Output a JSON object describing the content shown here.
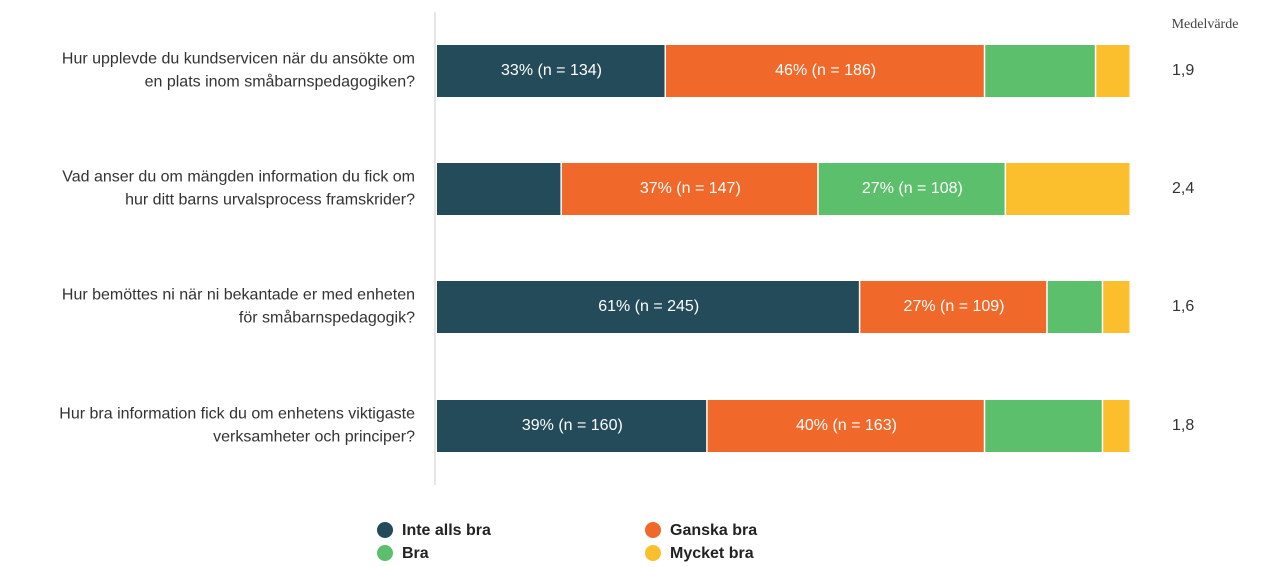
{
  "chart_data": {
    "type": "stacked_barh",
    "mean_title": "Medelvärde",
    "categories": [
      "Hur upplevde du kundservicen när du ansökte om en plats inom småbarnspedagogiken?",
      "Vad anser du om mängden information du fick om hur ditt barns urvalsprocess framskrider?",
      "Hur bemöttes ni när ni bekantade er med enheten för småbarnspedagogik?",
      "Hur bra information fick du om enhetens viktigaste verksamheter och principer?"
    ],
    "means": [
      "1,9",
      "2,4",
      "1,6",
      "1,8"
    ],
    "xlim": [
      0,
      100
    ],
    "series": [
      {
        "name": "Inte alls bra",
        "color": "#234b5a",
        "values": [
          33,
          18,
          61,
          39
        ],
        "value_labels": [
          "33% (n = 134)",
          null,
          "61% (n = 245)",
          "39% (n = 160)"
        ]
      },
      {
        "name": "Ganska bra",
        "color": "#f0682a",
        "values": [
          46,
          37,
          27,
          40
        ],
        "value_labels": [
          "46% (n = 186)",
          "37% (n = 147)",
          "27% (n = 109)",
          "40% (n = 163)"
        ]
      },
      {
        "name": "Bra",
        "color": "#5cbf6b",
        "values": [
          16,
          27,
          8,
          17
        ],
        "value_labels": [
          null,
          "27% (n = 108)",
          null,
          null
        ]
      },
      {
        "name": "Mycket bra",
        "color": "#fbbf2e",
        "values": [
          5,
          18,
          4,
          4
        ],
        "value_labels": [
          null,
          null,
          null,
          null
        ]
      }
    ]
  }
}
